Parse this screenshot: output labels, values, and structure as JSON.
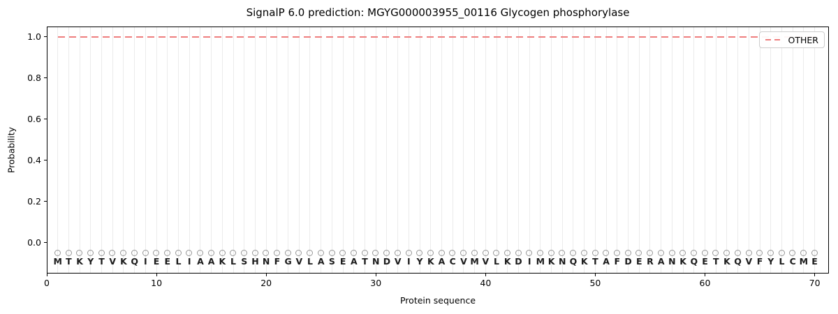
{
  "figure": {
    "title": "SignalP 6.0 prediction: MGYG000003955_00116 Glycogen phosphorylase",
    "xlabel": "Protein sequence",
    "ylabel": "Probability",
    "background": "#ffffff"
  },
  "legend": {
    "position": "upper-right",
    "entries": [
      {
        "label": "OTHER",
        "line_style": "dashed",
        "color": "#ee7e7e"
      }
    ]
  },
  "chart_data": {
    "type": "line",
    "title": "SignalP 6.0 prediction: MGYG000003955_00116 Glycogen phosphorylase",
    "xlabel": "Protein sequence",
    "ylabel": "Probability",
    "xlim": [
      0,
      71.3
    ],
    "ylim": [
      -0.15,
      1.05
    ],
    "xticks": [
      0,
      10,
      20,
      30,
      40,
      50,
      60,
      70
    ],
    "yticks": [
      0.0,
      0.2,
      0.4,
      0.6,
      0.8,
      1.0
    ],
    "grid": {
      "axis": "x",
      "interval": 1,
      "color": "#ebebeb"
    },
    "series": [
      {
        "name": "OTHER",
        "style": "dashed",
        "color": "#ee7e7e",
        "x_start": 1,
        "x_end": 70,
        "y_constant": 1.0
      }
    ],
    "sequence": "MTKYTVKQIEELIAAKLSHNFGVLASEATNDVIYKACVMVLKDIMKNQKTAFDERANKQETKQVFYLCME",
    "sequence_markers": {
      "glyph": "open-circle",
      "y": -0.05,
      "color": "#979797"
    },
    "sequence_letters": {
      "y": -0.092,
      "color": "#1b1b1b"
    }
  }
}
